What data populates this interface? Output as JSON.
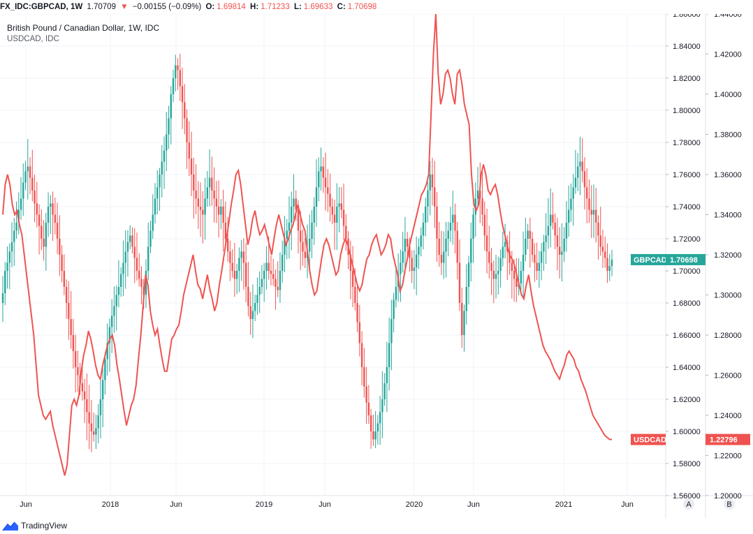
{
  "topbar": {
    "symbol": "FX_IDC:GBPCAD, 1W",
    "last": "1.70709",
    "arrow": "▼",
    "change": "−0.00155 (−0.09%)",
    "o_label": "O:",
    "o_value": "1.69814",
    "h_label": "H:",
    "h_value": "1.71233",
    "l_label": "L:",
    "l_value": "1.69633",
    "c_label": "C:",
    "c_value": "1.70698"
  },
  "legend": {
    "main_series": "British Pound / Canadian Dollar, 1W, IDC",
    "overlay_series": "USDCAD, IDC"
  },
  "footer": {
    "brand": "TradingView"
  },
  "colors": {
    "up": "#26a69a",
    "down": "#ef5350",
    "overlay": "#ef5350",
    "grid": "#f0f3fa",
    "tag_main": "#26a69a",
    "tag_overlay": "#ef5350"
  },
  "chart_data": {
    "type": "candlestick",
    "x_labels": [
      "Jun",
      "2018",
      "Jun",
      "2019",
      "Jun",
      "2020",
      "Jun",
      "2021",
      "Jun"
    ],
    "scale_buttons": [
      "A",
      "B"
    ],
    "axis_a": {
      "series": "GBPCAD",
      "ticks": [
        "1.86000",
        "1.84000",
        "1.82000",
        "1.80000",
        "1.78000",
        "1.76000",
        "1.74000",
        "1.72000",
        "1.70000",
        "1.68000",
        "1.66000",
        "1.64000",
        "1.62000",
        "1.60000",
        "1.58000",
        "1.56000"
      ],
      "ylim": [
        1.56,
        1.86
      ],
      "last_label": "GBPCAD",
      "last_value": "1.70698"
    },
    "axis_b": {
      "series": "USDCAD",
      "ticks": [
        "1.44000",
        "1.42000",
        "1.40000",
        "1.38000",
        "1.36000",
        "1.34000",
        "1.32000",
        "1.30000",
        "1.28000",
        "1.26000",
        "1.24000",
        "1.22000",
        "1.20000"
      ],
      "ylim": [
        1.2,
        1.44
      ],
      "last_label": "USDCAD",
      "last_value": "1.22796"
    },
    "gbpcad_close_weekly": [
      1.686,
      1.7,
      1.705,
      1.712,
      1.718,
      1.725,
      1.73,
      1.738,
      1.745,
      1.755,
      1.762,
      1.765,
      1.758,
      1.75,
      1.742,
      1.735,
      1.728,
      1.72,
      1.715,
      1.73,
      1.74,
      1.742,
      1.735,
      1.73,
      1.72,
      1.71,
      1.7,
      1.69,
      1.68,
      1.67,
      1.66,
      1.65,
      1.64,
      1.635,
      1.63,
      1.625,
      1.62,
      1.612,
      1.605,
      1.6,
      1.598,
      1.602,
      1.61,
      1.62,
      1.632,
      1.645,
      1.655,
      1.665,
      1.672,
      1.678,
      1.685,
      1.69,
      1.698,
      1.705,
      1.712,
      1.718,
      1.722,
      1.715,
      1.708,
      1.7,
      1.695,
      1.69,
      1.685,
      1.7,
      1.715,
      1.725,
      1.735,
      1.745,
      1.752,
      1.76,
      1.768,
      1.775,
      1.785,
      1.795,
      1.81,
      1.82,
      1.828,
      1.825,
      1.815,
      1.805,
      1.795,
      1.78,
      1.77,
      1.76,
      1.75,
      1.745,
      1.74,
      1.738,
      1.735,
      1.745,
      1.752,
      1.758,
      1.75,
      1.745,
      1.74,
      1.735,
      1.74,
      1.73,
      1.72,
      1.712,
      1.705,
      1.7,
      1.695,
      1.7,
      1.708,
      1.712,
      1.705,
      1.69,
      1.678,
      1.67,
      1.675,
      1.68,
      1.685,
      1.69,
      1.695,
      1.7,
      1.705,
      1.7,
      1.698,
      1.695,
      1.69,
      1.688,
      1.7,
      1.71,
      1.72,
      1.725,
      1.73,
      1.74,
      1.745,
      1.738,
      1.725,
      1.718,
      1.712,
      1.708,
      1.712,
      1.72,
      1.73,
      1.74,
      1.752,
      1.762,
      1.765,
      1.758,
      1.752,
      1.748,
      1.74,
      1.735,
      1.73,
      1.74,
      1.742,
      1.738,
      1.728,
      1.72,
      1.71,
      1.7,
      1.69,
      1.68,
      1.668,
      1.655,
      1.64,
      1.628,
      1.618,
      1.61,
      1.6,
      1.595,
      1.6,
      1.605,
      1.612,
      1.62,
      1.63,
      1.64,
      1.655,
      1.67,
      1.682,
      1.69,
      1.698,
      1.705,
      1.712,
      1.72,
      1.715,
      1.708,
      1.7,
      1.702,
      1.71,
      1.715,
      1.722,
      1.73,
      1.74,
      1.75,
      1.76,
      1.752,
      1.74,
      1.72,
      1.71,
      1.705,
      1.712,
      1.72,
      1.725,
      1.73,
      1.735,
      1.725,
      1.705,
      1.68,
      1.66,
      1.675,
      1.69,
      1.705,
      1.72,
      1.735,
      1.745,
      1.75,
      1.745,
      1.735,
      1.722,
      1.712,
      1.705,
      1.7,
      1.695,
      1.698,
      1.7,
      1.708,
      1.715,
      1.718,
      1.712,
      1.705,
      1.7,
      1.695,
      1.69,
      1.692,
      1.7,
      1.71,
      1.72,
      1.725,
      1.72,
      1.71,
      1.705,
      1.7,
      1.705,
      1.712,
      1.718,
      1.722,
      1.728,
      1.735,
      1.73,
      1.722,
      1.715,
      1.71,
      1.712,
      1.72,
      1.73,
      1.738,
      1.745,
      1.752,
      1.758,
      1.765,
      1.768,
      1.762,
      1.752,
      1.745,
      1.738,
      1.735,
      1.738,
      1.73,
      1.722,
      1.715,
      1.712,
      1.708,
      1.7,
      1.703,
      1.707
    ],
    "usdcad_close_weekly": [
      1.34,
      1.355,
      1.36,
      1.355,
      1.345,
      1.34,
      1.342,
      1.335,
      1.33,
      1.32,
      1.31,
      1.3,
      1.29,
      1.28,
      1.265,
      1.25,
      1.245,
      1.24,
      1.238,
      1.24,
      1.242,
      1.235,
      1.23,
      1.225,
      1.22,
      1.215,
      1.21,
      1.215,
      1.23,
      1.245,
      1.248,
      1.245,
      1.25,
      1.262,
      1.27,
      1.275,
      1.282,
      1.278,
      1.272,
      1.265,
      1.26,
      1.258,
      1.265,
      1.27,
      1.275,
      1.278,
      1.28,
      1.275,
      1.265,
      1.258,
      1.25,
      1.242,
      1.235,
      1.24,
      1.245,
      1.248,
      1.255,
      1.268,
      1.28,
      1.295,
      1.31,
      1.305,
      1.292,
      1.285,
      1.28,
      1.283,
      1.275,
      1.268,
      1.262,
      1.262,
      1.27,
      1.278,
      1.28,
      1.283,
      1.285,
      1.292,
      1.3,
      1.305,
      1.31,
      1.315,
      1.32,
      1.312,
      1.305,
      1.303,
      1.298,
      1.304,
      1.31,
      1.303,
      1.298,
      1.292,
      1.296,
      1.305,
      1.312,
      1.32,
      1.328,
      1.336,
      1.345,
      1.352,
      1.36,
      1.362,
      1.355,
      1.345,
      1.335,
      1.325,
      1.33,
      1.338,
      1.342,
      1.335,
      1.33,
      1.332,
      1.335,
      1.33,
      1.325,
      1.32,
      1.328,
      1.335,
      1.34,
      1.335,
      1.33,
      1.325,
      1.328,
      1.332,
      1.335,
      1.34,
      1.345,
      1.34,
      1.335,
      1.332,
      1.322,
      1.312,
      1.305,
      1.3,
      1.302,
      1.31,
      1.318,
      1.325,
      1.328,
      1.325,
      1.32,
      1.315,
      1.31,
      1.312,
      1.32,
      1.325,
      1.328,
      1.325,
      1.32,
      1.315,
      1.31,
      1.305,
      1.302,
      1.305,
      1.312,
      1.318,
      1.32,
      1.325,
      1.328,
      1.33,
      1.325,
      1.32,
      1.322,
      1.325,
      1.33,
      1.328,
      1.32,
      1.315,
      1.31,
      1.302,
      1.305,
      1.312,
      1.318,
      1.325,
      1.33,
      1.335,
      1.34,
      1.345,
      1.35,
      1.352,
      1.355,
      1.36,
      1.39,
      1.42,
      1.44,
      1.41,
      1.395,
      1.4,
      1.41,
      1.412,
      1.408,
      1.4,
      1.395,
      1.41,
      1.412,
      1.405,
      1.395,
      1.39,
      1.385,
      1.36,
      1.345,
      1.342,
      1.345,
      1.36,
      1.365,
      1.36,
      1.352,
      1.35,
      1.353,
      1.355,
      1.35,
      1.342,
      1.335,
      1.33,
      1.325,
      1.32,
      1.318,
      1.315,
      1.31,
      1.305,
      1.3,
      1.298,
      1.305,
      1.31,
      1.302,
      1.295,
      1.29,
      1.285,
      1.28,
      1.275,
      1.272,
      1.27,
      1.268,
      1.265,
      1.262,
      1.26,
      1.258,
      1.262,
      1.265,
      1.27,
      1.272,
      1.27,
      1.268,
      1.264,
      1.262,
      1.258,
      1.255,
      1.252,
      1.248,
      1.244,
      1.24,
      1.238,
      1.236,
      1.234,
      1.232,
      1.23,
      1.229,
      1.228,
      1.228
    ]
  }
}
